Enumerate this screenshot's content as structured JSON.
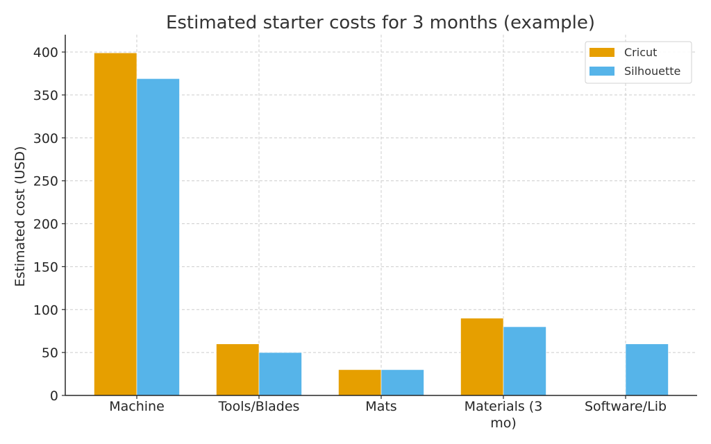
{
  "chart_data": {
    "type": "bar",
    "title": "Estimated starter costs for 3 months (example)",
    "xlabel": "",
    "ylabel": "Estimated cost (USD)",
    "categories": [
      "Machine",
      "Tools/Blades",
      "Mats",
      "Materials (3 mo)",
      "Software/Lib"
    ],
    "category_labels": [
      [
        "Machine"
      ],
      [
        "Tools/Blades"
      ],
      [
        "Mats"
      ],
      [
        "Materials (3",
        "mo)"
      ],
      [
        "Software/Lib"
      ]
    ],
    "series": [
      {
        "name": "Cricut",
        "color": "#E69F00",
        "values": [
          399,
          60,
          30,
          90,
          0
        ]
      },
      {
        "name": "Silhouette",
        "color": "#56B4E9",
        "values": [
          369,
          50,
          30,
          80,
          60
        ]
      }
    ],
    "ylim": [
      0,
      420
    ],
    "yticks": [
      0,
      50,
      100,
      150,
      200,
      250,
      300,
      350,
      400
    ],
    "grid": true,
    "legend_position": "upper right"
  }
}
